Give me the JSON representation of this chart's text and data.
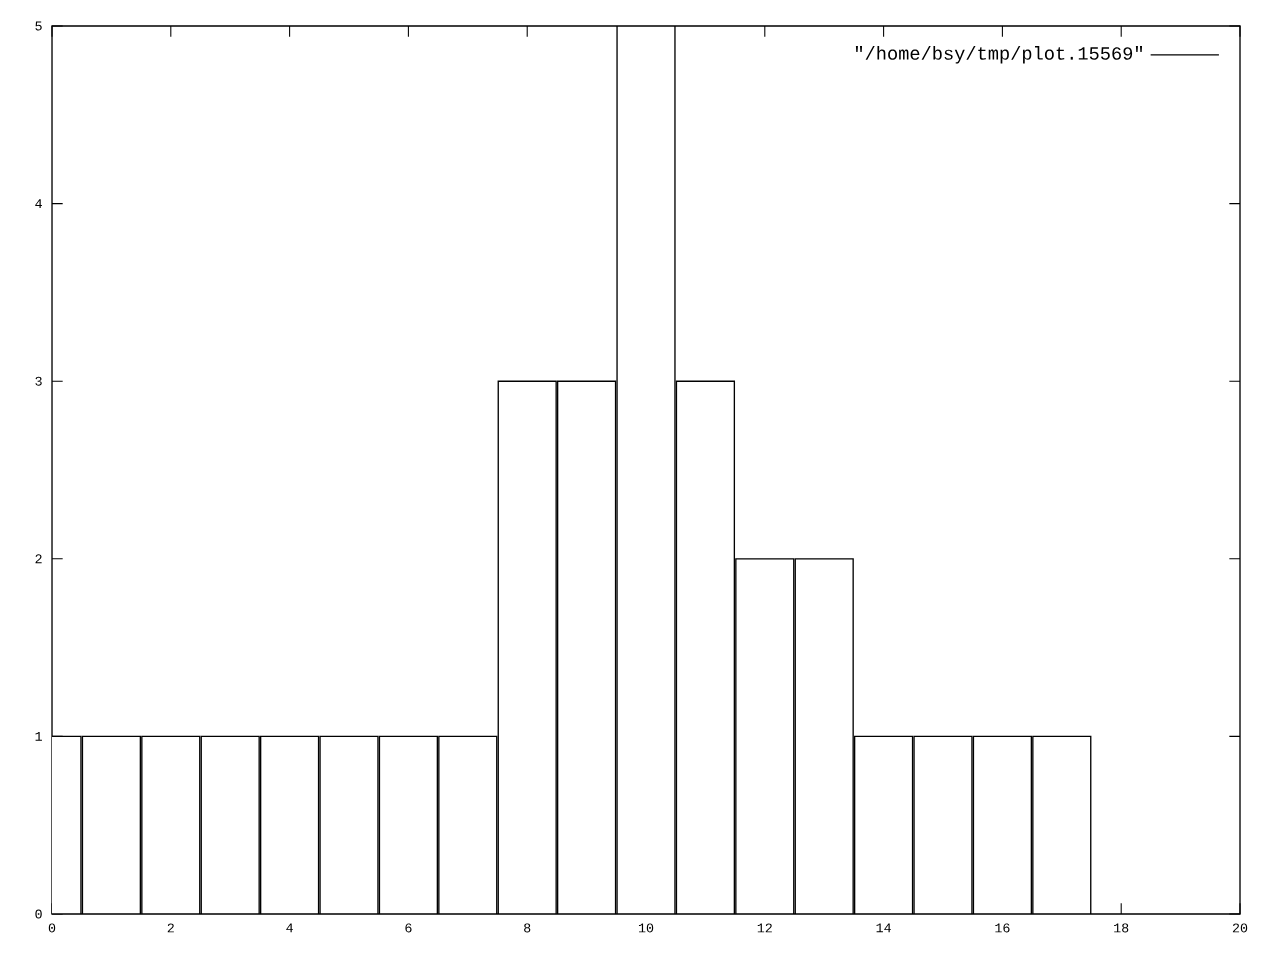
{
  "chart_data": {
    "type": "bar",
    "x": [
      0,
      1,
      2,
      3,
      4,
      5,
      6,
      7,
      8,
      9,
      10,
      11,
      12,
      13,
      14,
      15,
      16,
      17
    ],
    "series": [
      {
        "name": "\"/home/bsy/tmp/plot.15569\"",
        "color": "#ffffff",
        "values": [
          1,
          1,
          1,
          1,
          1,
          1,
          1,
          1,
          3,
          3,
          5,
          3,
          2,
          2,
          1,
          1,
          1,
          1
        ]
      }
    ],
    "xlim": [
      0,
      20
    ],
    "ylim": [
      0,
      5
    ],
    "xticks": [
      0,
      2,
      4,
      6,
      8,
      10,
      12,
      14,
      16,
      18,
      20
    ],
    "yticks": [
      0,
      1,
      2,
      3,
      4,
      5
    ],
    "legend": "top right"
  }
}
